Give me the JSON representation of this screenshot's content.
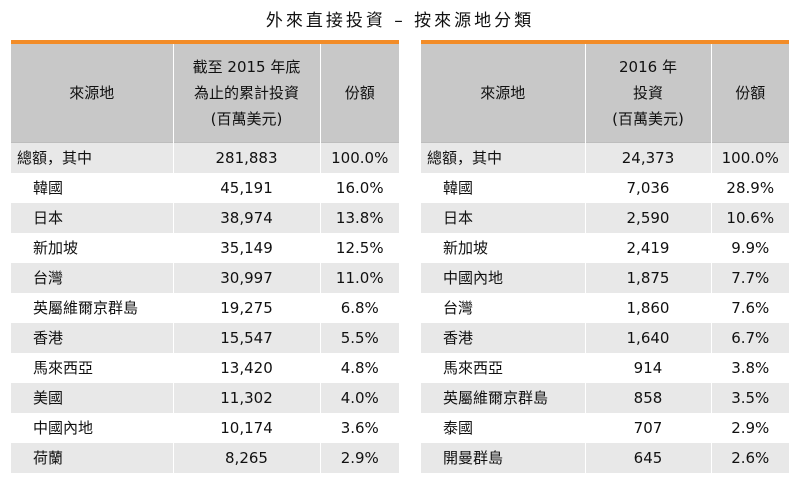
{
  "title": "外來直接投資 – 按來源地分類",
  "colors": {
    "accent_bar": "#f28c28",
    "header_bg": "#c8c8c8",
    "stripe_bg": "#e8e8e8"
  },
  "left_table": {
    "headers": {
      "source": "來源地",
      "amount": [
        "截至 2015 年底",
        "為止的累計投資",
        "(百萬美元)"
      ],
      "share": "份額"
    },
    "rows": [
      {
        "source": "總額，其中",
        "amount": "281,883",
        "share": "100.0%"
      },
      {
        "source": "韓國",
        "amount": "45,191",
        "share": "16.0%"
      },
      {
        "source": "日本",
        "amount": "38,974",
        "share": "13.8%"
      },
      {
        "source": "新加坡",
        "amount": "35,149",
        "share": "12.5%"
      },
      {
        "source": "台灣",
        "amount": "30,997",
        "share": "11.0%"
      },
      {
        "source": "英屬維爾京群島",
        "amount": "19,275",
        "share": "6.8%"
      },
      {
        "source": "香港",
        "amount": "15,547",
        "share": "5.5%"
      },
      {
        "source": "馬來西亞",
        "amount": "13,420",
        "share": "4.8%"
      },
      {
        "source": "美國",
        "amount": "11,302",
        "share": "4.0%"
      },
      {
        "source": "中國內地",
        "amount": "10,174",
        "share": "3.6%"
      },
      {
        "source": "荷蘭",
        "amount": "8,265",
        "share": "2.9%"
      }
    ]
  },
  "right_table": {
    "headers": {
      "source": "來源地",
      "amount": [
        "2016 年",
        "投資",
        "(百萬美元)"
      ],
      "share": "份額"
    },
    "rows": [
      {
        "source": "總額，其中",
        "amount": "24,373",
        "share": "100.0%"
      },
      {
        "source": "韓國",
        "amount": "7,036",
        "share": "28.9%"
      },
      {
        "source": "日本",
        "amount": "2,590",
        "share": "10.6%"
      },
      {
        "source": "新加坡",
        "amount": "2,419",
        "share": "9.9%"
      },
      {
        "source": "中國內地",
        "amount": "1,875",
        "share": "7.7%"
      },
      {
        "source": "台灣",
        "amount": "1,860",
        "share": "7.6%"
      },
      {
        "source": "香港",
        "amount": "1,640",
        "share": "6.7%"
      },
      {
        "source": "馬來西亞",
        "amount": "914",
        "share": "3.8%"
      },
      {
        "source": "英屬維爾京群島",
        "amount": "858",
        "share": "3.5%"
      },
      {
        "source": "泰國",
        "amount": "707",
        "share": "2.9%"
      },
      {
        "source": "開曼群島",
        "amount": "645",
        "share": "2.6%"
      }
    ]
  }
}
